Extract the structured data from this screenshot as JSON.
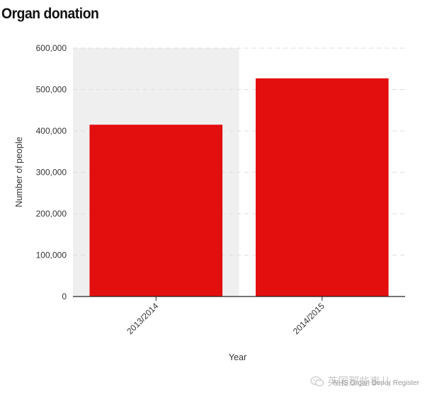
{
  "header": {
    "title": "Organ donation"
  },
  "footer": {
    "source": "NHS Organ Donor Register",
    "watermark": "英国那些事儿"
  },
  "colors": {
    "bar": "#e30e0e",
    "highlight_band": "#efefef",
    "grid": "#dddddd",
    "axis": "#222222"
  },
  "icons": {
    "watermark_icon": "wechat-icon"
  },
  "chart_data": {
    "type": "bar",
    "title": "Organ donation",
    "xlabel": "Year",
    "ylabel": "Number of people",
    "categories": [
      "2013/2014",
      "2014/2015"
    ],
    "values": [
      415000,
      527000
    ],
    "ylim": [
      0,
      600000
    ],
    "yticks": [
      0,
      100000,
      200000,
      300000,
      400000,
      500000,
      600000
    ],
    "ytick_labels": [
      "0",
      "100,000",
      "200,000",
      "300,000",
      "400,000",
      "500,000",
      "600,000"
    ],
    "grid": true,
    "highlight_category": "2013/2014",
    "source": "NHS Organ Donor Register"
  }
}
